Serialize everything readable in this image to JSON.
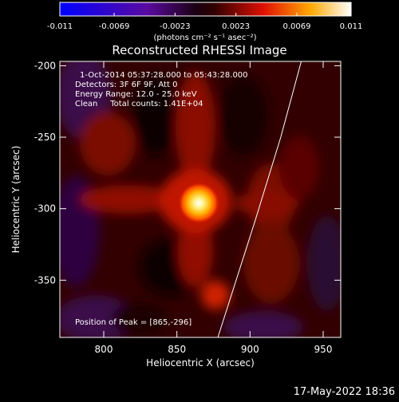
{
  "colorbar": {
    "tick_labels": [
      "-0.011",
      "-0.0069",
      "-0.0023",
      "0.0023",
      "0.0069",
      "0.011"
    ],
    "tick_values": [
      -0.011,
      -0.0069,
      -0.0023,
      0.0023,
      0.0069,
      0.011
    ],
    "range": [
      -0.011,
      0.011
    ],
    "unit_label": "(photons cm⁻² s⁻¹ asec⁻²)",
    "colormap": "rhessi blue-purple-black-red-yellow-white"
  },
  "chart_data": {
    "type": "heatmap",
    "title": "Reconstructed RHESSI Image",
    "xlabel": "Heliocentric X (arcsec)",
    "ylabel": "Heliocentric Y (arcsec)",
    "xlim": [
      770,
      962
    ],
    "ylim": [
      -390,
      -197
    ],
    "x_ticks": [
      800,
      850,
      900,
      950
    ],
    "y_ticks": [
      -200,
      -250,
      -300,
      -350
    ],
    "x_tick_labels": [
      "800",
      "850",
      "900",
      "950"
    ],
    "y_tick_labels": [
      "-200",
      "-250",
      "-300",
      "-350"
    ],
    "annotations": [
      "1-Oct-2014 05:37:28.000 to 05:43:28.000",
      "Detectors: 3F 6F 9F, Att 0",
      "Energy Range: 12.0 - 25.0 keV",
      "Clean     Total counts: 1.41E+04"
    ],
    "peak_label": "Position of Peak = [865,-296]",
    "peak": {
      "x": 865,
      "y": -296
    },
    "limb_curve": [
      {
        "x": 935,
        "y": -197
      },
      {
        "x": 921,
        "y": -250
      },
      {
        "x": 903,
        "y": -310
      },
      {
        "x": 878,
        "y": -390
      }
    ],
    "background_color": "#000000",
    "line_color": "#ffffff"
  },
  "footer": {
    "timestamp": "17-May-2022 18:36"
  }
}
